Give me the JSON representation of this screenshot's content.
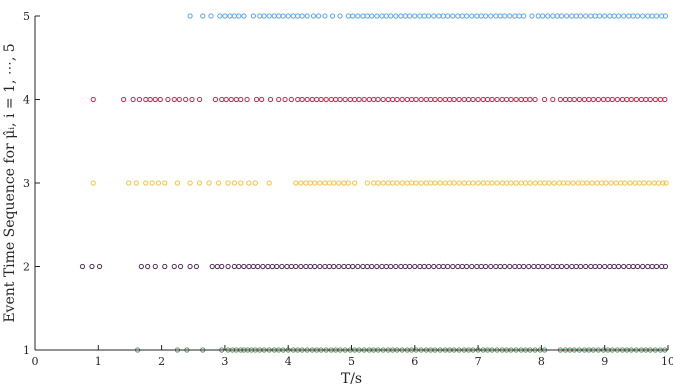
{
  "chart_data": {
    "type": "scatter",
    "title": "",
    "xlabel": "T/s",
    "ylabel": "Event Time Sequence for μ̂ᵢ, i = 1, ⋯, 5",
    "xlim": [
      0,
      10
    ],
    "ylim": [
      1,
      5
    ],
    "x_ticks": [
      "0",
      "1",
      "2",
      "3",
      "4",
      "5",
      "6",
      "7",
      "8",
      "9",
      "10"
    ],
    "y_ticks": [
      "1",
      "2",
      "3",
      "4",
      "5"
    ],
    "grid": false,
    "series": [
      {
        "level": 1,
        "color": "#5e8f62",
        "x": [
          1.62,
          2.25,
          2.4,
          2.65,
          2.95,
          3.05,
          3.12,
          3.18,
          3.25,
          3.3,
          3.36,
          3.42,
          3.48,
          3.55,
          3.62,
          3.7,
          3.78,
          3.85,
          3.92,
          4.0,
          4.08,
          4.15,
          4.22,
          4.3,
          4.38,
          4.45,
          4.52,
          4.6,
          4.68,
          4.75,
          4.82,
          4.9,
          4.98,
          5.05,
          5.12,
          5.2,
          5.28,
          5.35,
          5.42,
          5.5,
          5.58,
          5.65,
          5.72,
          5.8,
          5.88,
          5.95,
          6.02,
          6.1,
          6.18,
          6.25,
          6.32,
          6.4,
          6.48,
          6.55,
          6.62,
          6.7,
          6.78,
          6.85,
          6.92,
          7.0,
          7.08,
          7.15,
          7.22,
          7.3,
          7.38,
          7.45,
          7.52,
          7.6,
          7.68,
          7.75,
          7.82,
          7.9,
          7.98,
          8.05,
          8.3,
          8.38,
          8.45,
          8.52,
          8.6,
          8.68,
          8.75,
          8.82,
          8.9,
          8.98,
          9.05,
          9.12,
          9.2,
          9.28,
          9.35,
          9.42,
          9.5,
          9.58,
          9.65,
          9.72,
          9.8,
          9.88,
          9.95
        ]
      },
      {
        "level": 2,
        "color": "#4f2d55",
        "x": [
          0.75,
          0.9,
          1.02,
          1.68,
          1.78,
          1.9,
          2.05,
          2.2,
          2.3,
          2.45,
          2.55,
          2.8,
          2.88,
          2.95,
          3.05,
          3.15,
          3.22,
          3.3,
          3.38,
          3.45,
          3.52,
          3.6,
          3.68,
          3.75,
          3.82,
          3.9,
          3.98,
          4.05,
          4.12,
          4.2,
          4.28,
          4.35,
          4.42,
          4.5,
          4.58,
          4.65,
          4.72,
          4.8,
          4.88,
          4.95,
          5.02,
          5.1,
          5.18,
          5.25,
          5.32,
          5.4,
          5.48,
          5.55,
          5.62,
          5.7,
          5.78,
          5.85,
          5.92,
          6.0,
          6.08,
          6.15,
          6.22,
          6.3,
          6.38,
          6.45,
          6.52,
          6.6,
          6.68,
          6.75,
          6.82,
          6.9,
          6.98,
          7.05,
          7.12,
          7.2,
          7.28,
          7.35,
          7.42,
          7.5,
          7.58,
          7.65,
          7.72,
          7.8,
          7.88,
          7.95,
          8.02,
          8.1,
          8.18,
          8.25,
          8.32,
          8.4,
          8.48,
          8.55,
          8.62,
          8.7,
          8.78,
          8.85,
          8.92,
          9.0,
          9.08,
          9.15,
          9.22,
          9.3,
          9.38,
          9.45,
          9.52,
          9.6,
          9.68,
          9.75,
          9.82,
          9.9,
          9.96
        ]
      },
      {
        "level": 3,
        "color": "#f5c242",
        "x": [
          0.92,
          1.48,
          1.6,
          1.75,
          1.85,
          1.95,
          2.05,
          2.25,
          2.45,
          2.6,
          2.75,
          2.9,
          3.05,
          3.15,
          3.25,
          3.38,
          3.48,
          3.7,
          4.12,
          4.2,
          4.28,
          4.35,
          4.42,
          4.5,
          4.58,
          4.65,
          4.72,
          4.8,
          4.88,
          4.95,
          5.05,
          5.25,
          5.35,
          5.42,
          5.5,
          5.58,
          5.65,
          5.72,
          5.8,
          5.88,
          5.95,
          6.02,
          6.1,
          6.18,
          6.25,
          6.32,
          6.4,
          6.48,
          6.55,
          6.62,
          6.7,
          6.78,
          6.85,
          6.92,
          7.0,
          7.08,
          7.15,
          7.22,
          7.3,
          7.38,
          7.45,
          7.52,
          7.6,
          7.68,
          7.75,
          7.82,
          7.9,
          7.98,
          8.05,
          8.12,
          8.2,
          8.28,
          8.35,
          8.42,
          8.5,
          8.58,
          8.65,
          8.72,
          8.8,
          8.88,
          8.95,
          9.02,
          9.1,
          9.18,
          9.25,
          9.32,
          9.4,
          9.48,
          9.55,
          9.62,
          9.7,
          9.78,
          9.85,
          9.92,
          9.97
        ]
      },
      {
        "level": 4,
        "color": "#d61f4e",
        "x": [
          0.92,
          1.4,
          1.55,
          1.65,
          1.75,
          1.82,
          1.9,
          1.98,
          2.1,
          2.2,
          2.28,
          2.38,
          2.48,
          2.6,
          2.85,
          2.95,
          3.02,
          3.1,
          3.18,
          3.25,
          3.35,
          3.5,
          3.58,
          3.72,
          3.85,
          3.95,
          4.05,
          4.15,
          4.22,
          4.3,
          4.38,
          4.45,
          4.52,
          4.6,
          4.68,
          4.75,
          4.82,
          4.9,
          4.98,
          5.05,
          5.12,
          5.2,
          5.28,
          5.35,
          5.42,
          5.5,
          5.58,
          5.65,
          5.72,
          5.8,
          5.88,
          5.95,
          6.02,
          6.1,
          6.18,
          6.25,
          6.32,
          6.4,
          6.48,
          6.55,
          6.62,
          6.7,
          6.78,
          6.85,
          6.92,
          7.0,
          7.08,
          7.15,
          7.22,
          7.3,
          7.38,
          7.45,
          7.52,
          7.6,
          7.68,
          7.75,
          7.82,
          7.9,
          8.05,
          8.18,
          8.3,
          8.38,
          8.45,
          8.52,
          8.6,
          8.68,
          8.75,
          8.82,
          8.9,
          8.98,
          9.05,
          9.12,
          9.2,
          9.28,
          9.35,
          9.42,
          9.5,
          9.58,
          9.65,
          9.72,
          9.8,
          9.88,
          9.95
        ]
      },
      {
        "level": 5,
        "color": "#5aa6e6",
        "x": [
          2.45,
          2.65,
          2.78,
          2.92,
          3.0,
          3.08,
          3.15,
          3.22,
          3.3,
          3.45,
          3.55,
          3.62,
          3.7,
          3.78,
          3.85,
          3.92,
          4.0,
          4.08,
          4.15,
          4.22,
          4.3,
          4.4,
          4.48,
          4.58,
          4.7,
          4.82,
          4.95,
          5.02,
          5.1,
          5.18,
          5.25,
          5.32,
          5.4,
          5.48,
          5.55,
          5.62,
          5.7,
          5.78,
          5.85,
          5.92,
          6.0,
          6.08,
          6.15,
          6.22,
          6.3,
          6.38,
          6.45,
          6.52,
          6.6,
          6.68,
          6.75,
          6.82,
          6.9,
          6.98,
          7.05,
          7.12,
          7.2,
          7.28,
          7.35,
          7.42,
          7.5,
          7.58,
          7.65,
          7.72,
          7.85,
          7.95,
          8.02,
          8.1,
          8.18,
          8.25,
          8.32,
          8.4,
          8.48,
          8.55,
          8.62,
          8.7,
          8.78,
          8.85,
          8.92,
          9.0,
          9.08,
          9.15,
          9.22,
          9.3,
          9.38,
          9.45,
          9.52,
          9.6,
          9.68,
          9.75,
          9.82,
          9.9,
          9.96
        ]
      }
    ]
  }
}
